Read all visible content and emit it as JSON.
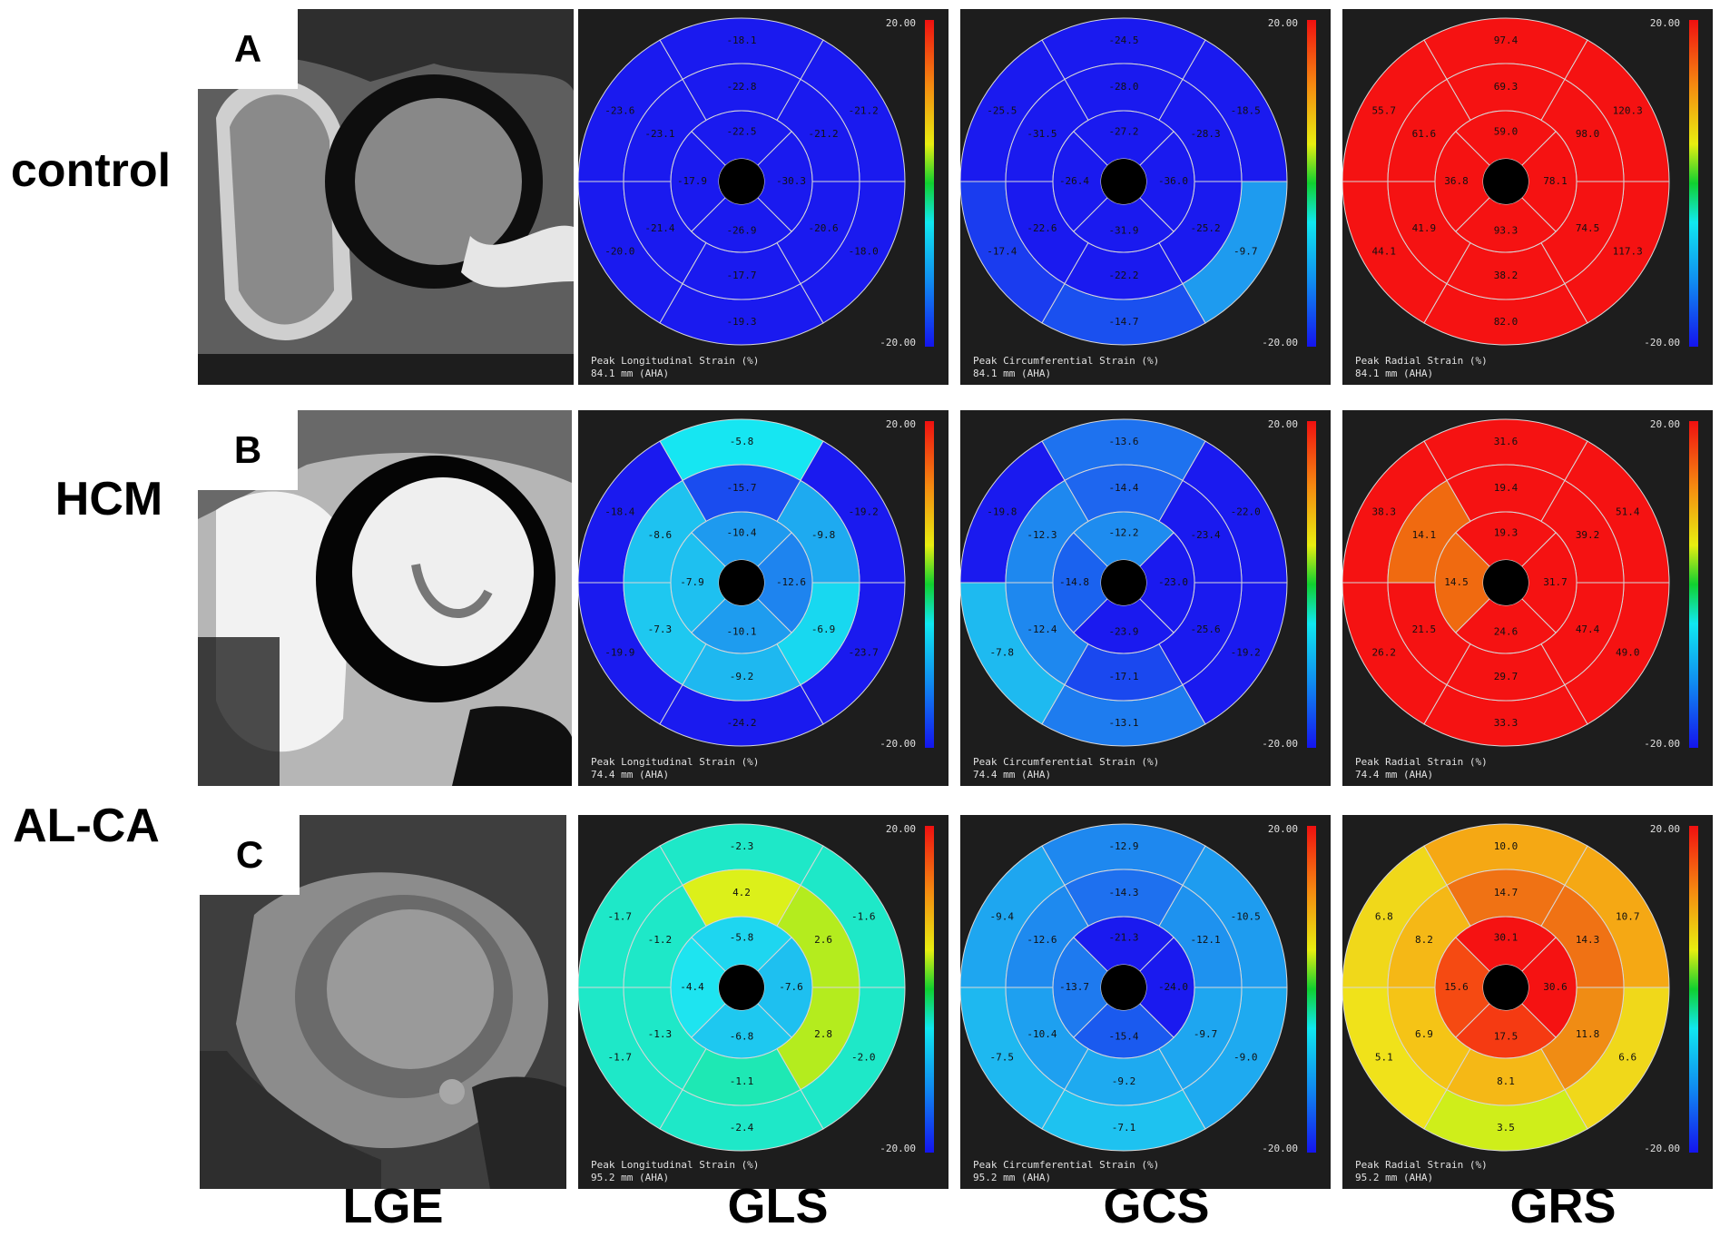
{
  "row_labels": [
    "control",
    "HCM",
    "AL-CA"
  ],
  "panel_letters": [
    "A",
    "B",
    "C"
  ],
  "column_labels": [
    "LGE",
    "GLS",
    "GCS",
    "GRS"
  ],
  "colorbar": {
    "max": "20.00",
    "min": "-20.00"
  },
  "strain_titles": {
    "gls": "Peak Longitudinal Strain (%)",
    "gcs": "Peak Circumferential Strain (%)",
    "grs": "Peak Radial Strain (%)"
  },
  "rows": [
    {
      "footer": "84.1 mm (AHA)",
      "gls": {
        "basal": [
          "-18.1",
          "-23.6",
          "-20.0",
          "-19.3",
          "-18.0",
          "-21.2"
        ],
        "mid": [
          "-22.8",
          "-23.1",
          "-21.4",
          "-17.7",
          "-20.6",
          "-21.2"
        ],
        "apical": [
          "-22.5",
          "-17.9",
          "-26.9",
          "-30.3"
        ],
        "basal_color": [
          "#1a1aef",
          "#1a1aef",
          "#1a1aef",
          "#1a1aef",
          "#1a1aef",
          "#1a1aef"
        ],
        "mid_color": [
          "#1a1aef",
          "#1a1aef",
          "#1a1aef",
          "#1a1aef",
          "#1a1aef",
          "#1a1aef"
        ],
        "apical_color": [
          "#1a1aef",
          "#1a1aef",
          "#1a1aef",
          "#1a1aef"
        ]
      },
      "gcs": {
        "basal": [
          "-24.5",
          "-25.5",
          "-17.4",
          "-14.7",
          "-9.7",
          "-18.5"
        ],
        "mid": [
          "-28.0",
          "-31.5",
          "-22.6",
          "-22.2",
          "-25.2",
          "-28.3"
        ],
        "apical": [
          "-27.2",
          "-26.4",
          "-31.9",
          "-36.0"
        ],
        "basal_color": [
          "#1a1aef",
          "#1a1aef",
          "#1a3cef",
          "#1a50ef",
          "#1e9bef",
          "#1a1aef"
        ],
        "mid_color": [
          "#1a1aef",
          "#1a1aef",
          "#1a1aef",
          "#1a1aef",
          "#1a1aef",
          "#1a1aef"
        ],
        "apical_color": [
          "#1a1aef",
          "#1a1aef",
          "#1a1aef",
          "#1a1aef"
        ]
      },
      "grs": {
        "basal": [
          "97.4",
          "55.7",
          "44.1",
          "82.0",
          "117.3",
          "120.3"
        ],
        "mid": [
          "69.3",
          "61.6",
          "41.9",
          "38.2",
          "74.5",
          "98.0"
        ],
        "apical": [
          "59.0",
          "36.8",
          "93.3",
          "78.1"
        ],
        "basal_color": [
          "#f51212",
          "#f51212",
          "#f51212",
          "#f51212",
          "#f51212",
          "#f51212"
        ],
        "mid_color": [
          "#f51212",
          "#f51212",
          "#f51212",
          "#f51212",
          "#f51212",
          "#f51212"
        ],
        "apical_color": [
          "#f51212",
          "#f51212",
          "#f51212",
          "#f51212"
        ]
      }
    },
    {
      "footer": "74.4 mm (AHA)",
      "gls": {
        "basal": [
          "-5.8",
          "-18.4",
          "-19.9",
          "-24.2",
          "-23.7",
          "-19.2"
        ],
        "mid": [
          "-15.7",
          "-8.6",
          "-7.3",
          "-9.2",
          "-6.9",
          "-9.8"
        ],
        "apical": [
          "-10.4",
          "-7.9",
          "-10.1",
          "-12.6"
        ],
        "basal_color": [
          "#16e6f2",
          "#1a1aef",
          "#1a1aef",
          "#1a1aef",
          "#1a1aef",
          "#1a1aef"
        ],
        "mid_color": [
          "#1a4cef",
          "#1ec2f0",
          "#1ec8f0",
          "#1eb8f0",
          "#18d8f0",
          "#1eaaf0"
        ],
        "apical_color": [
          "#1e9aef",
          "#1ec0f0",
          "#1e9cef",
          "#1e84ef"
        ]
      },
      "gcs": {
        "basal": [
          "-13.6",
          "-19.8",
          "-7.8",
          "-13.1",
          "-19.2",
          "-22.0"
        ],
        "mid": [
          "-14.4",
          "-12.3",
          "-12.4",
          "-17.1",
          "-25.6",
          "-23.4"
        ],
        "apical": [
          "-12.2",
          "-14.8",
          "-23.9",
          "-23.0"
        ],
        "basal_color": [
          "#1e72ef",
          "#1a1aef",
          "#1ebaf0",
          "#1e7cef",
          "#1a1aef",
          "#1a1aef"
        ],
        "mid_color": [
          "#1e66ef",
          "#1e88ef",
          "#1e88ef",
          "#1a48ef",
          "#1a1aef",
          "#1a1aef"
        ],
        "apical_color": [
          "#1e8cef",
          "#1a62ef",
          "#1a1aef",
          "#1a1aef"
        ]
      },
      "grs": {
        "basal": [
          "31.6",
          "38.3",
          "26.2",
          "33.3",
          "49.0",
          "51.4"
        ],
        "mid": [
          "19.4",
          "14.1",
          "21.5",
          "29.7",
          "47.4",
          "39.2"
        ],
        "apical": [
          "19.3",
          "14.5",
          "24.6",
          "31.7"
        ],
        "basal_color": [
          "#f51212",
          "#f51212",
          "#f51212",
          "#f51212",
          "#f51212",
          "#f51212"
        ],
        "mid_color": [
          "#f51212",
          "#f06a10",
          "#f51212",
          "#f51212",
          "#f51212",
          "#f51212"
        ],
        "apical_color": [
          "#f51212",
          "#f06a10",
          "#f51212",
          "#f51212"
        ]
      }
    },
    {
      "footer": "95.2 mm (AHA)",
      "gls": {
        "basal": [
          "-2.3",
          "-1.7",
          "-1.7",
          "-2.4",
          "-2.0",
          "-1.6"
        ],
        "mid": [
          "4.2",
          "-1.2",
          "-1.3",
          "-1.1",
          "2.8",
          "2.6"
        ],
        "apical": [
          "-5.8",
          "-4.4",
          "-6.8",
          "-7.6"
        ],
        "basal_color": [
          "#1ee8c8",
          "#1ee8c8",
          "#1ee8c8",
          "#1ee8c8",
          "#1ee8c8",
          "#1ee8c8"
        ],
        "mid_color": [
          "#dcf01a",
          "#1ee8c8",
          "#1ee8c8",
          "#1ee8b4",
          "#b4ec1e",
          "#b4ec1e"
        ],
        "apical_color": [
          "#1ed6f0",
          "#1ee4f0",
          "#1ec8f0",
          "#1ec0f0"
        ]
      },
      "gcs": {
        "basal": [
          "-12.9",
          "-9.4",
          "-7.5",
          "-7.1",
          "-9.0",
          "-10.5"
        ],
        "mid": [
          "-14.3",
          "-12.6",
          "-10.4",
          "-9.2",
          "-9.7",
          "-12.1"
        ],
        "apical": [
          "-21.3",
          "-13.7",
          "-15.4",
          "-24.0"
        ],
        "basal_color": [
          "#1e88ef",
          "#1ea6f0",
          "#1eb8f0",
          "#1ec2f0",
          "#1eaaf0",
          "#1e9cef"
        ],
        "mid_color": [
          "#1e70ef",
          "#1e8aef",
          "#1ea0f0",
          "#1eaaf0",
          "#1ea6f0",
          "#1e92ef"
        ],
        "apical_color": [
          "#1a1aef",
          "#1e7aef",
          "#1a5aef",
          "#1a1aef"
        ]
      },
      "grs": {
        "basal": [
          "10.0",
          "6.8",
          "5.1",
          "3.5",
          "6.6",
          "10.7"
        ],
        "mid": [
          "14.7",
          "8.2",
          "6.9",
          "8.1",
          "11.8",
          "14.3"
        ],
        "apical": [
          "30.1",
          "15.6",
          "17.5",
          "30.6"
        ],
        "basal_color": [
          "#f5a814",
          "#f0d81a",
          "#f0e21a",
          "#cfee1a",
          "#f0d81a",
          "#f5a814"
        ],
        "mid_color": [
          "#f07214",
          "#f5b816",
          "#f5c416",
          "#f5b816",
          "#f08c14",
          "#f07214"
        ],
        "apical_color": [
          "#f51212",
          "#f54a12",
          "#f53a12",
          "#f51212"
        ]
      }
    }
  ]
}
